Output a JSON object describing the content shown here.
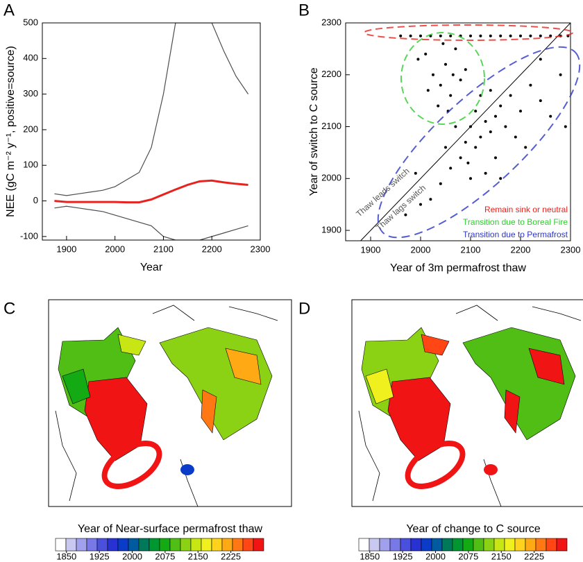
{
  "chart_data": [
    {
      "type": "line",
      "label": "A",
      "x_label": "Year",
      "y_label": "NEE (gC m⁻² y⁻¹, positive=source)",
      "x": [
        1875,
        1900,
        1925,
        1950,
        1975,
        2000,
        2025,
        2050,
        2075,
        2100,
        2125,
        2150,
        2175,
        2200,
        2225,
        2250,
        2275
      ],
      "xlim": [
        1850,
        2300
      ],
      "xticks": [
        1900,
        2000,
        2100,
        2200,
        2300
      ],
      "ylim": [
        -110,
        500
      ],
      "yticks": [
        -100,
        0,
        100,
        200,
        300,
        400,
        500
      ],
      "series": [
        {
          "color": "#000000",
          "values": [
            20,
            15,
            20,
            25,
            30,
            40,
            60,
            80,
            150,
            300,
            500,
            500,
            500,
            500,
            420,
            350,
            300
          ]
        },
        {
          "color": "#000000",
          "values": [
            -20,
            -15,
            -20,
            -25,
            -30,
            -40,
            -50,
            -60,
            -70,
            -100,
            -110,
            -110,
            -110,
            -100,
            -90,
            -80,
            -70
          ]
        },
        {
          "color": "#e8231e",
          "values": [
            0,
            -3,
            -3,
            -3,
            -3,
            -3,
            -4,
            -4,
            4,
            18,
            32,
            45,
            55,
            57,
            52,
            48,
            45
          ]
        }
      ]
    },
    {
      "type": "scatter",
      "label": "B",
      "x_label": "Year of 3m permafrost thaw",
      "y_label": "Year of switch to C source",
      "xlim": [
        1850,
        2300
      ],
      "xticks": [
        1900,
        2000,
        2100,
        2200,
        2300
      ],
      "ylim": [
        1880,
        2300
      ],
      "yticks": [
        1900,
        2000,
        2100,
        2200,
        2300
      ],
      "color": "#000000",
      "x": [
        1960,
        1980,
        2000,
        2020,
        2040,
        2060,
        2080,
        2100,
        2120,
        2140,
        2160,
        2180,
        2200,
        2220,
        2240,
        2260,
        2280,
        2295,
        2010,
        2025,
        2040,
        2050,
        2060,
        2070,
        2035,
        2080,
        2015,
        2055,
        2045,
        2090,
        1995,
        2065,
        2100,
        2120,
        2130,
        2140,
        2110,
        2150,
        2160,
        2090,
        2080,
        2170,
        2180,
        2200,
        2220,
        2240,
        2260,
        2280,
        2060,
        2040,
        2020,
        2000,
        2130,
        2150,
        2190,
        2210,
        2120,
        2070,
        2050,
        2100,
        2240,
        2290,
        1990,
        2160,
        2110,
        2140,
        2095,
        1970
      ],
      "values": [
        2275,
        2275,
        2275,
        2275,
        2275,
        2275,
        2275,
        2275,
        2275,
        2275,
        2275,
        2275,
        2275,
        2275,
        2275,
        2275,
        2275,
        2275,
        2240,
        2200,
        2180,
        2220,
        2160,
        2250,
        2140,
        2190,
        2170,
        2130,
        2260,
        2210,
        2230,
        2200,
        2100,
        2080,
        2110,
        2090,
        2060,
        2120,
        2140,
        2070,
        2040,
        2100,
        2160,
        2130,
        2180,
        2150,
        2120,
        2200,
        2020,
        1990,
        1960,
        1950,
        2010,
        2040,
        2080,
        2060,
        2160,
        2100,
        2060,
        2000,
        2230,
        2100,
        2010,
        2000,
        2130,
        2170,
        2030,
        1930
      ],
      "annotations": [
        "Thaw leads switch",
        "Thaw lags switch"
      ],
      "legend": [
        {
          "name": "Remain sink or neutral",
          "color": "#e8231e"
        },
        {
          "name": "Transition due to Boreal Fire",
          "color": "#2ecc2e"
        },
        {
          "name": "Transition due to Permafrost",
          "color": "#2b35c8"
        }
      ]
    },
    {
      "type": "map",
      "label": "C",
      "title": "Year of Near-surface permafrost thaw",
      "clim": [
        1825,
        2300
      ],
      "cticks": [
        1850,
        1925,
        2000,
        2075,
        2150,
        2225
      ],
      "colors": [
        "#ffffff",
        "#c8c8f0",
        "#a0a0ec",
        "#7878e6",
        "#4b50dc",
        "#2832d2",
        "#0a3cc8",
        "#005aa0",
        "#00785a",
        "#009632",
        "#14aa14",
        "#50be14",
        "#8cd214",
        "#c8e614",
        "#f0f01e",
        "#ffd21e",
        "#ffaa14",
        "#ff7814",
        "#ff4614",
        "#f01414"
      ]
    },
    {
      "type": "map",
      "label": "D",
      "title": "Year of change to C source",
      "clim": [
        1825,
        2300
      ],
      "cticks": [
        1850,
        1925,
        2000,
        2075,
        2150,
        2225
      ],
      "colors": [
        "#ffffff",
        "#c8c8f0",
        "#a0a0ec",
        "#7878e6",
        "#4b50dc",
        "#2832d2",
        "#0a3cc8",
        "#005aa0",
        "#00785a",
        "#009632",
        "#14aa14",
        "#50be14",
        "#8cd214",
        "#c8e614",
        "#f0f01e",
        "#ffd21e",
        "#ffaa14",
        "#ff7814",
        "#ff4614",
        "#f01414"
      ]
    }
  ]
}
